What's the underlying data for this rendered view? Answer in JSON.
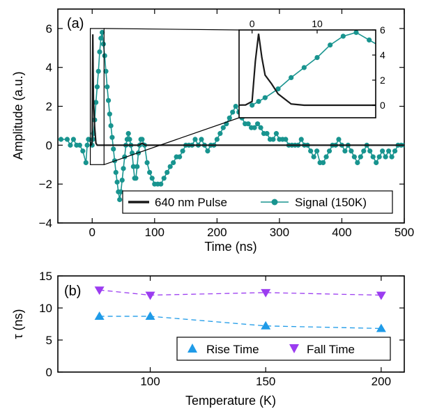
{
  "colors": {
    "pulse": "#1a1a1a",
    "signal": "#18948f",
    "rise": "#1f9be8",
    "fall": "#9b3cf0"
  },
  "chart_data": [
    {
      "panel": "(a)",
      "type": "line",
      "xlabel": "Time (ns)",
      "ylabel": "Amplitude (a.u.)",
      "xlim": [
        -55,
        500
      ],
      "ylim": [
        -4,
        7
      ],
      "xticks": [
        0,
        100,
        200,
        300,
        400,
        500
      ],
      "yticks": [
        -4,
        -2,
        0,
        2,
        4,
        6
      ],
      "legend_position": "bottom-right",
      "series": [
        {
          "name": "640 nm Pulse",
          "style": "line",
          "points": [
            [
              -3,
              0
            ],
            [
              -1,
              0.02
            ],
            [
              0,
              0.3
            ],
            [
              0.5,
              3.5
            ],
            [
              1,
              5.7
            ],
            [
              1.5,
              3.8
            ],
            [
              2,
              2.4
            ],
            [
              3,
              1.7
            ],
            [
              4,
              0.9
            ],
            [
              5,
              0.5
            ],
            [
              6,
              0.1
            ],
            [
              7,
              0.05
            ],
            [
              8,
              0
            ],
            [
              20,
              0
            ],
            [
              40,
              0
            ],
            [
              60,
              0
            ],
            [
              75,
              0
            ],
            [
              80,
              0.1
            ],
            [
              85,
              0
            ],
            [
              100,
              0
            ],
            [
              150,
              0
            ],
            [
              200,
              0
            ],
            [
              300,
              0
            ],
            [
              400,
              0
            ],
            [
              500,
              0
            ]
          ]
        },
        {
          "name": "Signal (150K)",
          "style": "line+marker",
          "points": [
            [
              -50,
              0.3
            ],
            [
              -40,
              0.3
            ],
            [
              -35,
              0
            ],
            [
              -30,
              0.3
            ],
            [
              -25,
              0
            ],
            [
              -20,
              0
            ],
            [
              -15,
              -0.3
            ],
            [
              -10,
              -0.9
            ],
            [
              -8,
              0
            ],
            [
              -6,
              0.3
            ],
            [
              0,
              0
            ],
            [
              1,
              0.3
            ],
            [
              2,
              0.6
            ],
            [
              4,
              1.3
            ],
            [
              6,
              2.2
            ],
            [
              8,
              3.0
            ],
            [
              10,
              3.8
            ],
            [
              12,
              4.8
            ],
            [
              14,
              5.5
            ],
            [
              16,
              5.8
            ],
            [
              18,
              5.2
            ],
            [
              20,
              4.6
            ],
            [
              22,
              3.8
            ],
            [
              24,
              3.0
            ],
            [
              26,
              2.3
            ],
            [
              28,
              1.6
            ],
            [
              30,
              1.0
            ],
            [
              32,
              0.4
            ],
            [
              34,
              -0.2
            ],
            [
              36,
              -0.8
            ],
            [
              38,
              -1.4
            ],
            [
              40,
              -1.9
            ],
            [
              42,
              -2.4
            ],
            [
              44,
              -2.8
            ],
            [
              46,
              -2.4
            ],
            [
              48,
              -1.8
            ],
            [
              50,
              -1.2
            ],
            [
              52,
              -0.6
            ],
            [
              54,
              0
            ],
            [
              56,
              0.3
            ],
            [
              58,
              0.6
            ],
            [
              60,
              0.3
            ],
            [
              62,
              0
            ],
            [
              64,
              -0.4
            ],
            [
              66,
              -1.1
            ],
            [
              68,
              -1.7
            ],
            [
              70,
              -1.7
            ],
            [
              72,
              -1.1
            ],
            [
              74,
              -0.4
            ],
            [
              76,
              0
            ],
            [
              78,
              0.3
            ],
            [
              80,
              0.3
            ],
            [
              84,
              0
            ],
            [
              88,
              -0.9
            ],
            [
              92,
              -1.4
            ],
            [
              96,
              -1.7
            ],
            [
              100,
              -2.0
            ],
            [
              105,
              -2.0
            ],
            [
              110,
              -2.0
            ],
            [
              115,
              -1.7
            ],
            [
              120,
              -1.4
            ],
            [
              125,
              -1.1
            ],
            [
              130,
              -0.9
            ],
            [
              135,
              -0.6
            ],
            [
              140,
              -0.6
            ],
            [
              145,
              -0.3
            ],
            [
              150,
              0
            ],
            [
              155,
              0
            ],
            [
              160,
              0
            ],
            [
              165,
              0.3
            ],
            [
              170,
              0
            ],
            [
              175,
              0.3
            ],
            [
              180,
              0
            ],
            [
              185,
              -0.3
            ],
            [
              190,
              0
            ],
            [
              195,
              0
            ],
            [
              200,
              0.3
            ],
            [
              205,
              0.6
            ],
            [
              210,
              0.9
            ],
            [
              215,
              1.1
            ],
            [
              220,
              1.4
            ],
            [
              225,
              1.7
            ],
            [
              230,
              2.0
            ],
            [
              235,
              1.7
            ],
            [
              240,
              1.4
            ],
            [
              245,
              1.1
            ],
            [
              250,
              1.1
            ],
            [
              255,
              0.9
            ],
            [
              260,
              0.9
            ],
            [
              265,
              1.1
            ],
            [
              270,
              0.9
            ],
            [
              275,
              0.6
            ],
            [
              280,
              0.6
            ],
            [
              285,
              0.3
            ],
            [
              290,
              0.3
            ],
            [
              295,
              0.6
            ],
            [
              300,
              0.3
            ],
            [
              305,
              0.3
            ],
            [
              310,
              0.3
            ],
            [
              315,
              0
            ],
            [
              320,
              0
            ],
            [
              325,
              0
            ],
            [
              330,
              0
            ],
            [
              335,
              0.3
            ],
            [
              340,
              0
            ],
            [
              345,
              0
            ],
            [
              350,
              -0.3
            ],
            [
              355,
              -0.6
            ],
            [
              360,
              -0.3
            ],
            [
              365,
              -0.9
            ],
            [
              370,
              -0.9
            ],
            [
              375,
              -0.6
            ],
            [
              380,
              -0.3
            ],
            [
              385,
              0
            ],
            [
              390,
              0
            ],
            [
              395,
              0.3
            ],
            [
              400,
              0
            ],
            [
              405,
              -0.3
            ],
            [
              410,
              0
            ],
            [
              415,
              -0.3
            ],
            [
              420,
              -0.6
            ],
            [
              425,
              -0.9
            ],
            [
              430,
              -0.6
            ],
            [
              435,
              -0.3
            ],
            [
              440,
              0
            ],
            [
              445,
              -0.3
            ],
            [
              450,
              -0.6
            ],
            [
              455,
              -0.9
            ],
            [
              460,
              -0.6
            ],
            [
              465,
              -0.3
            ],
            [
              470,
              -0.6
            ],
            [
              475,
              -0.3
            ],
            [
              480,
              -0.6
            ],
            [
              485,
              -0.3
            ],
            [
              490,
              0
            ],
            [
              495,
              0
            ],
            [
              500,
              0
            ]
          ]
        }
      ],
      "zoom_box_x": [
        -3,
        19
      ],
      "inset": {
        "xlim": [
          -2,
          19
        ],
        "ylim": [
          -1,
          6
        ],
        "xticks": [
          0,
          10
        ],
        "yticks": [
          0,
          2,
          4,
          6
        ]
      }
    },
    {
      "panel": "(b)",
      "type": "line",
      "xlabel": "Temperature (K)",
      "ylabel": "τ (ns)",
      "xlim": [
        60,
        210
      ],
      "ylim": [
        0,
        15
      ],
      "xticks": [
        100,
        150,
        200
      ],
      "yticks": [
        0,
        5,
        10,
        15
      ],
      "legend_position": "bottom-right",
      "series": [
        {
          "name": "Rise Time",
          "marker": "triangle-up",
          "x": [
            78,
            100,
            150,
            200
          ],
          "values": [
            8.7,
            8.7,
            7.2,
            6.8
          ]
        },
        {
          "name": "Fall Time",
          "marker": "triangle-down",
          "x": [
            78,
            100,
            150,
            200
          ],
          "values": [
            12.8,
            12.0,
            12.4,
            12.0
          ]
        }
      ]
    }
  ]
}
